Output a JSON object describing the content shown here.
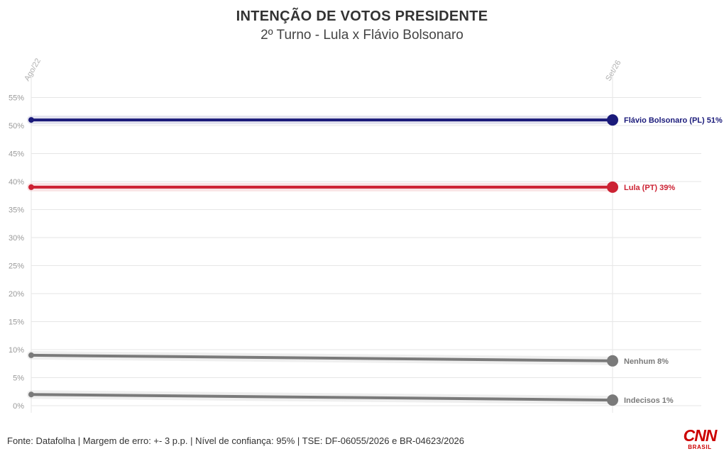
{
  "chart_data": {
    "type": "line",
    "title": "INTENÇÃO DE VOTOS PRESIDENTE",
    "subtitle": "2º Turno - Lula x Flávio Bolsonaro",
    "categories": [
      "Ago/22",
      "Set/26"
    ],
    "ylim": [
      0,
      56
    ],
    "yticks": [
      0,
      5,
      10,
      15,
      20,
      25,
      30,
      35,
      40,
      45,
      50,
      55
    ],
    "ytick_suffix": "%",
    "grid": true,
    "legend": "none (labels at line ends)",
    "series": [
      {
        "name": "Flávio Bolsonaro (PL)",
        "values": [
          51,
          51
        ],
        "color": "#1a1a7a",
        "end_label": "Flávio Bolsonaro (PL) 51%"
      },
      {
        "name": "Lula (PT)",
        "values": [
          39,
          39
        ],
        "color": "#cc2233",
        "end_label": "Lula (PT) 39%"
      },
      {
        "name": "Nenhum",
        "values": [
          9,
          8
        ],
        "color": "#7a7a7a",
        "end_label": "Nenhum 8%"
      },
      {
        "name": "Indecisos",
        "values": [
          2,
          1
        ],
        "color": "#7a7a7a",
        "end_label": "Indecisos 1%"
      }
    ]
  },
  "header": {
    "title": "INTENÇÃO DE VOTOS PRESIDENTE",
    "subtitle": "2º Turno - Lula x Flávio Bolsonaro"
  },
  "footer": {
    "source": "Fonte: Datafolha | Margem de erro: +- 3 p.p. | Nível de confiança: 95% | TSE: DF-06055/2026 e BR-04623/2026"
  },
  "logo": {
    "main": "CNN",
    "sub": "BRASIL"
  },
  "colors": {
    "grid": "#e6e6e6",
    "axis_text": "#9a9a9a"
  }
}
